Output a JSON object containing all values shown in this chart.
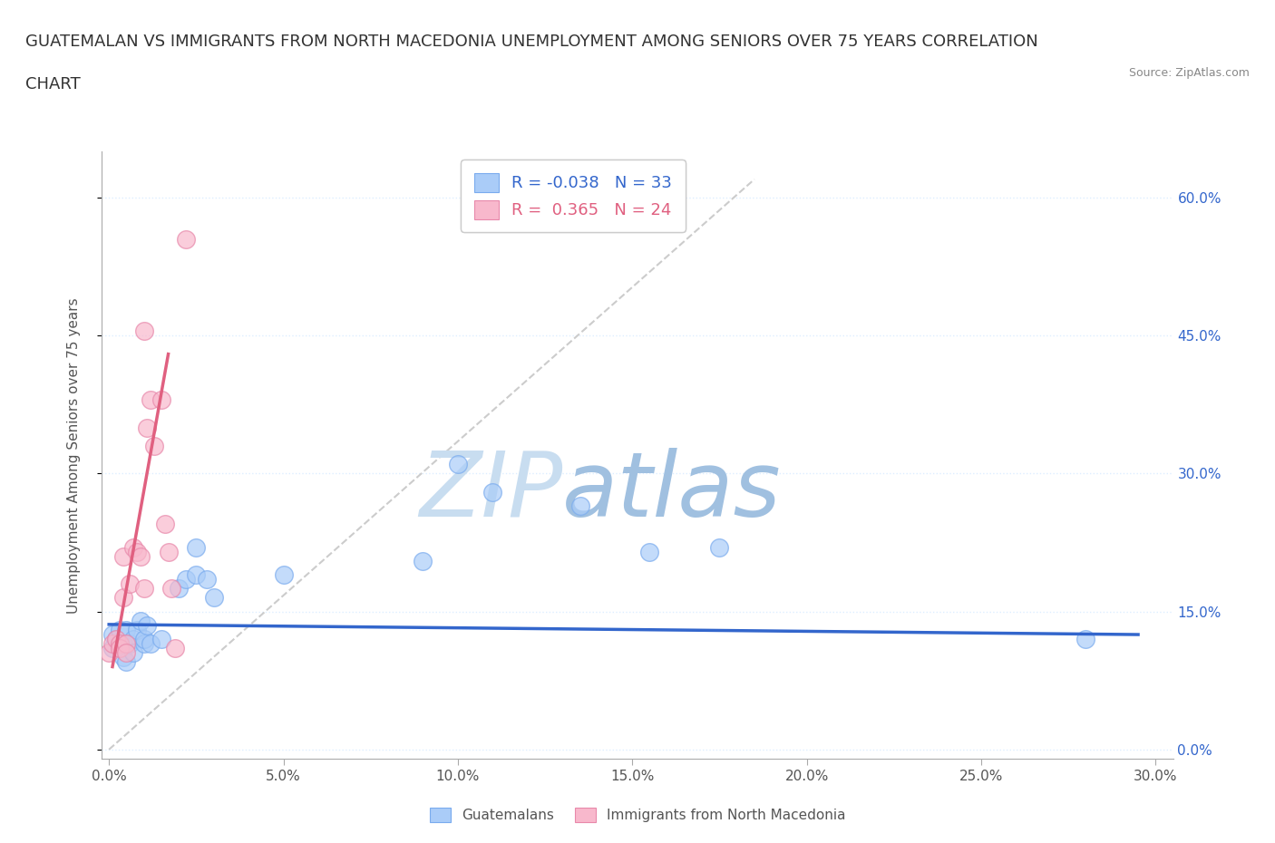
{
  "title_line1": "GUATEMALAN VS IMMIGRANTS FROM NORTH MACEDONIA UNEMPLOYMENT AMONG SENIORS OVER 75 YEARS CORRELATION",
  "title_line2": "CHART",
  "source": "Source: ZipAtlas.com",
  "xlabel_ticks": [
    "0.0%",
    "5.0%",
    "10.0%",
    "15.0%",
    "20.0%",
    "25.0%",
    "30.0%"
  ],
  "ylabel_ticks_right": [
    "0.0%",
    "15.0%",
    "30.0%",
    "45.0%",
    "60.0%"
  ],
  "xlim": [
    -0.002,
    0.305
  ],
  "ylim": [
    -0.01,
    0.65
  ],
  "ylabel": "Unemployment Among Seniors over 75 years",
  "blue_scatter_x": [
    0.001,
    0.001,
    0.002,
    0.003,
    0.003,
    0.004,
    0.004,
    0.005,
    0.005,
    0.006,
    0.007,
    0.007,
    0.008,
    0.009,
    0.01,
    0.01,
    0.011,
    0.012,
    0.015,
    0.02,
    0.022,
    0.025,
    0.025,
    0.028,
    0.03,
    0.05,
    0.09,
    0.1,
    0.11,
    0.135,
    0.155,
    0.175,
    0.28
  ],
  "blue_scatter_y": [
    0.125,
    0.11,
    0.12,
    0.13,
    0.115,
    0.115,
    0.1,
    0.13,
    0.095,
    0.115,
    0.12,
    0.105,
    0.13,
    0.14,
    0.115,
    0.12,
    0.135,
    0.115,
    0.12,
    0.175,
    0.185,
    0.19,
    0.22,
    0.185,
    0.165,
    0.19,
    0.205,
    0.31,
    0.28,
    0.265,
    0.215,
    0.22,
    0.12
  ],
  "pink_scatter_x": [
    0.0,
    0.001,
    0.002,
    0.003,
    0.003,
    0.004,
    0.004,
    0.005,
    0.005,
    0.006,
    0.007,
    0.008,
    0.009,
    0.01,
    0.01,
    0.011,
    0.012,
    0.013,
    0.015,
    0.016,
    0.017,
    0.018,
    0.019,
    0.022
  ],
  "pink_scatter_y": [
    0.105,
    0.115,
    0.12,
    0.115,
    0.11,
    0.21,
    0.165,
    0.115,
    0.105,
    0.18,
    0.22,
    0.215,
    0.21,
    0.175,
    0.455,
    0.35,
    0.38,
    0.33,
    0.38,
    0.245,
    0.215,
    0.175,
    0.11,
    0.555
  ],
  "blue_line_x": [
    0.0,
    0.295
  ],
  "blue_line_y": [
    0.136,
    0.125
  ],
  "pink_line_x": [
    0.001,
    0.017
  ],
  "pink_line_y": [
    0.09,
    0.43
  ],
  "diag_line_x": [
    0.0,
    0.185
  ],
  "diag_line_y": [
    0.0,
    0.62
  ],
  "blue_color": "#aaccf8",
  "blue_edge_color": "#7aabee",
  "blue_line_color": "#3366cc",
  "pink_color": "#f8b8cc",
  "pink_edge_color": "#e888aa",
  "pink_line_color": "#e06080",
  "diag_color": "#cccccc",
  "watermark_zip": "ZIP",
  "watermark_atlas": "atlas",
  "watermark_color_zip": "#c8ddf0",
  "watermark_color_atlas": "#a0c0e0",
  "legend_blue_label": "R = -0.038   N = 33",
  "legend_pink_label": "R =  0.365   N = 24",
  "legend_blue_text_color": "#3366cc",
  "legend_pink_text_color": "#e06080",
  "grid_color": "#ddeeff",
  "grid_linestyle": "dotted",
  "title_fontsize": 13,
  "axis_label_fontsize": 11,
  "tick_fontsize": 11,
  "right_tick_color": "#3366cc",
  "bottom_legend_label1": "Guatemalans",
  "bottom_legend_label2": "Immigrants from North Macedonia"
}
